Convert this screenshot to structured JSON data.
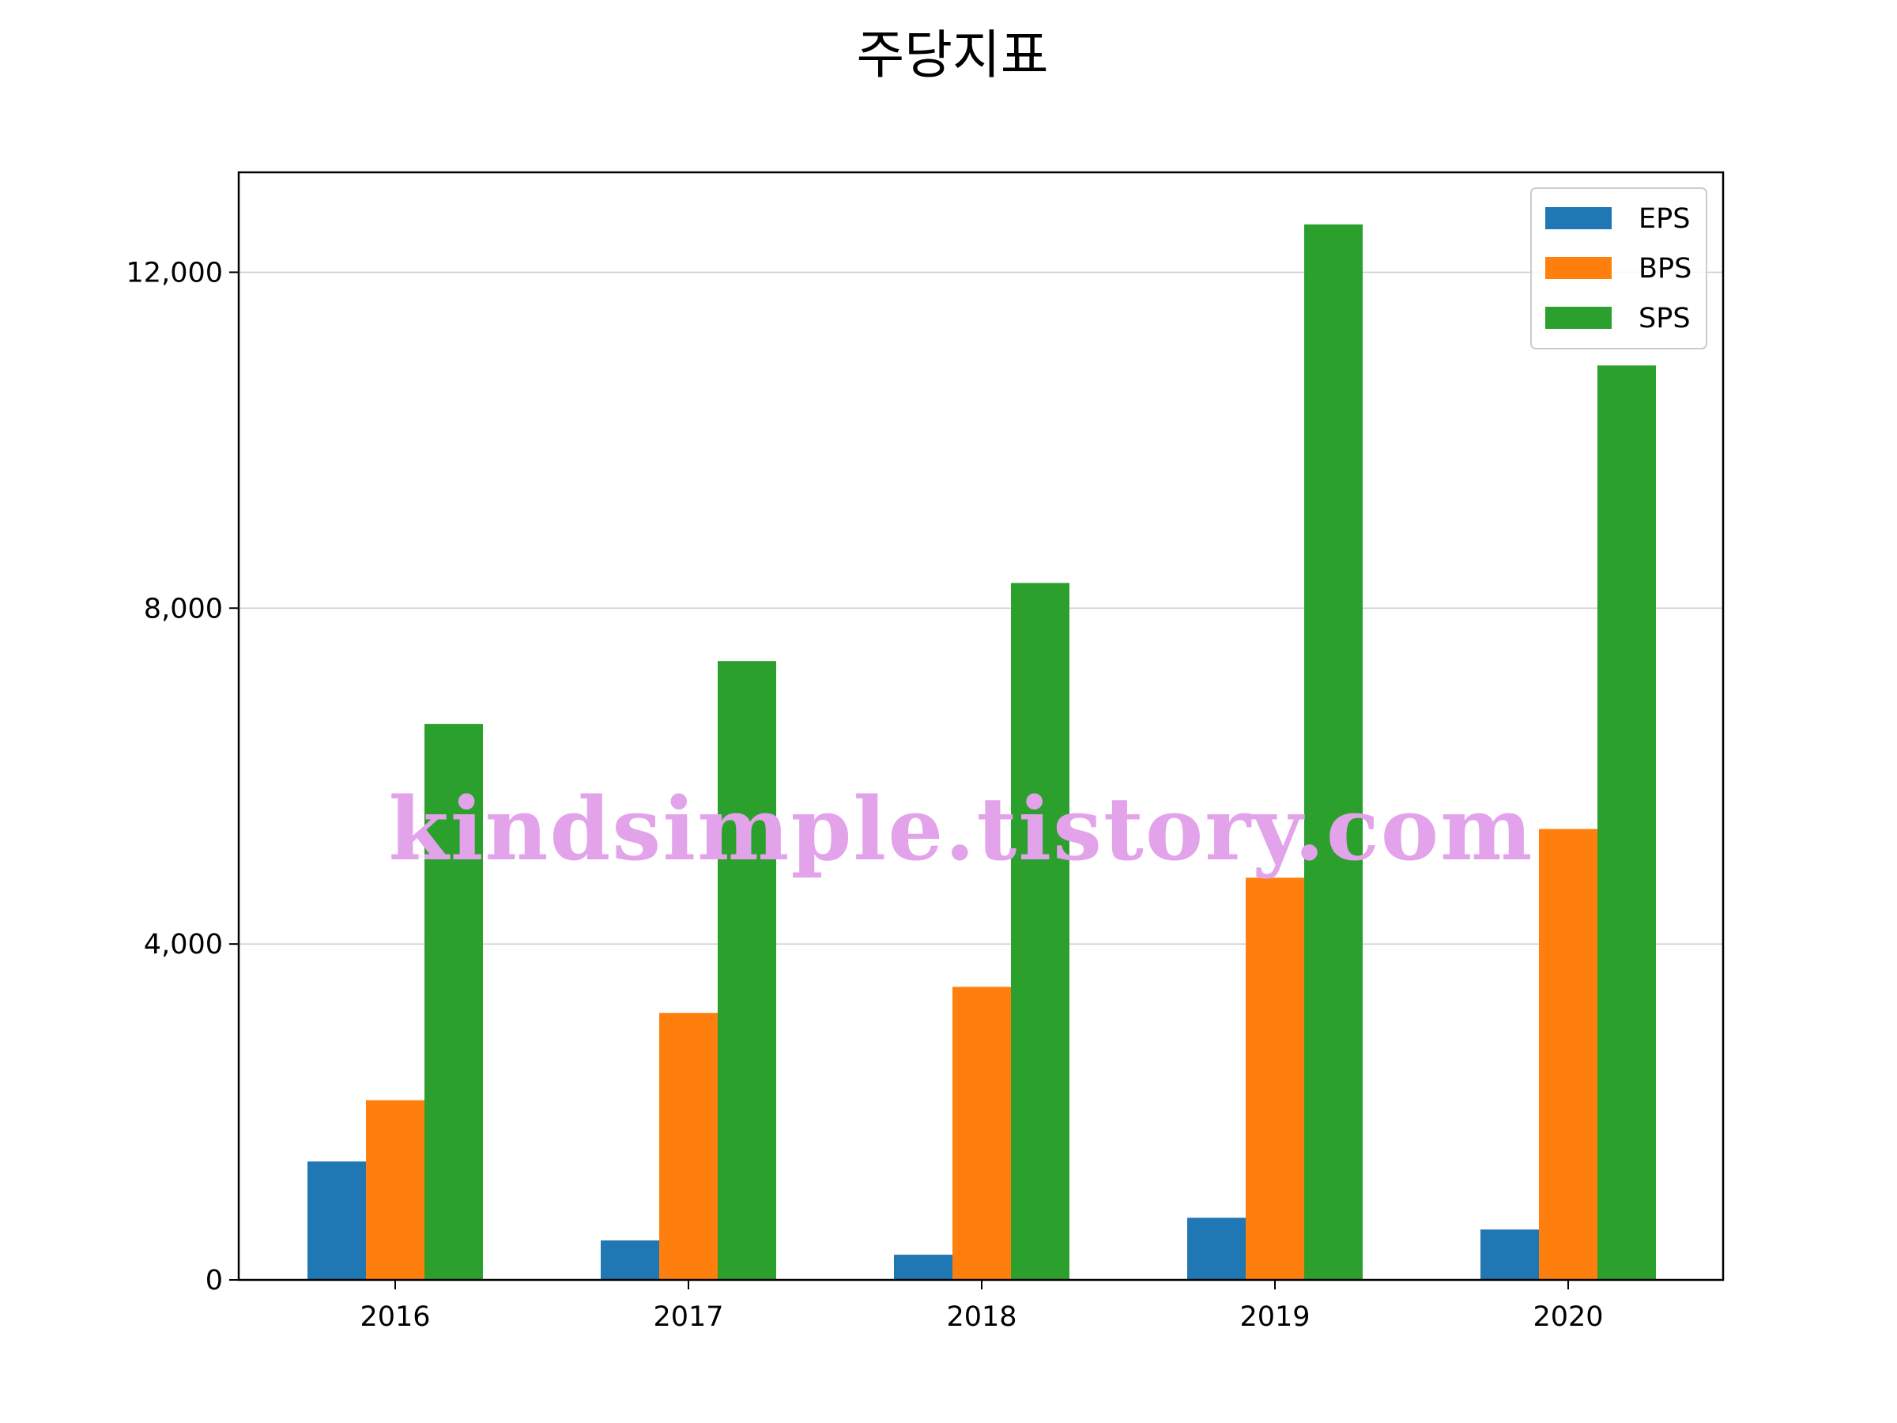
{
  "chart_data": {
    "type": "bar",
    "title": "주당지표",
    "xlabel": "",
    "ylabel": "",
    "categories": [
      "2016",
      "2017",
      "2018",
      "2019",
      "2020"
    ],
    "series": [
      {
        "name": "EPS",
        "color": "#1f77b4",
        "values": [
          1410,
          470,
          300,
          740,
          600
        ]
      },
      {
        "name": "BPS",
        "color": "#ff7f0e",
        "values": [
          2140,
          3180,
          3490,
          4790,
          5370
        ]
      },
      {
        "name": "SPS",
        "color": "#2ca02c",
        "values": [
          6620,
          7370,
          8300,
          12570,
          10890
        ]
      }
    ],
    "ylim": [
      0,
      13190
    ],
    "yticks": [
      0,
      4000,
      8000,
      12000
    ],
    "ytick_labels": [
      "0",
      "4,000",
      "8,000",
      "12,000"
    ],
    "grid": "horizontal",
    "legend_position": "top-right",
    "watermark": "kindsimple.tistory.com"
  }
}
